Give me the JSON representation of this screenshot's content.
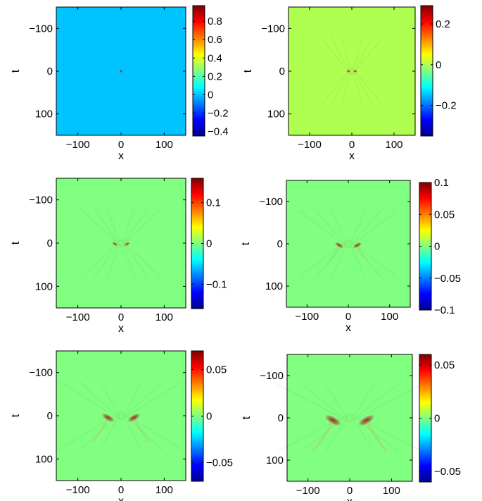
{
  "chart_data": [
    {
      "type": "heatmap",
      "panel": "top-left",
      "xlabel": "x",
      "ylabel": "t",
      "xlim": [
        -150,
        150
      ],
      "ylim": [
        -150,
        150
      ],
      "y_reversed": true,
      "x_ticks": [
        "−100",
        "0",
        "100"
      ],
      "y_ticks": [
        "−100",
        "0",
        "100"
      ],
      "colorbar": {
        "min": -0.45,
        "max": 0.97,
        "ticks": [
          "0.8",
          "0.6",
          "0.4",
          "0.2",
          "0",
          "−0.2",
          "−0.4"
        ],
        "tick_values": [
          0.8,
          0.6,
          0.4,
          0.2,
          0,
          -0.2,
          -0.4
        ]
      },
      "background_value": 0,
      "features": [
        {
          "shape": "point",
          "x": 0,
          "t": 0,
          "value": 0.97
        }
      ]
    },
    {
      "type": "heatmap",
      "panel": "top-right",
      "xlabel": "x",
      "ylabel": "t",
      "xlim": [
        -150,
        150
      ],
      "ylim": [
        -150,
        150
      ],
      "y_reversed": true,
      "x_ticks": [
        "−100",
        "0",
        "100"
      ],
      "y_ticks": [
        "−100",
        "0",
        "100"
      ],
      "colorbar": {
        "min": -0.35,
        "max": 0.29,
        "ticks": [
          "0.2",
          "0",
          "−0.2"
        ],
        "tick_values": [
          0.2,
          0,
          -0.2
        ]
      },
      "background_value": 0,
      "features": [
        {
          "shape": "pair",
          "x": 0,
          "t": 0,
          "separation": 8,
          "value": 0.29
        }
      ]
    },
    {
      "type": "heatmap",
      "panel": "middle-left",
      "xlabel": "x",
      "ylabel": "t",
      "xlim": [
        -150,
        150
      ],
      "ylim": [
        -150,
        150
      ],
      "y_reversed": true,
      "x_ticks": [
        "−100",
        "0",
        "100"
      ],
      "y_ticks": [
        "−100",
        "0",
        "100"
      ],
      "colorbar": {
        "min": -0.16,
        "max": 0.16,
        "ticks": [
          "0.1",
          "0",
          "−0.1"
        ],
        "tick_values": [
          0.1,
          0,
          -0.1
        ]
      },
      "background_value": 0,
      "features": [
        {
          "shape": "arc",
          "x": 0,
          "t": 0,
          "separation": 14,
          "value": 0.16
        }
      ]
    },
    {
      "type": "heatmap",
      "panel": "middle-right",
      "xlabel": "x",
      "ylabel": "t",
      "xlim": [
        -150,
        150
      ],
      "ylim": [
        -150,
        150
      ],
      "y_reversed": true,
      "x_ticks": [
        "−100",
        "0",
        "100"
      ],
      "y_ticks": [
        "−100",
        "0",
        "100"
      ],
      "colorbar": {
        "min": -0.1,
        "max": 0.1,
        "ticks": [
          "0.1",
          "0.05",
          "0",
          "−0.05",
          "−0.1"
        ],
        "tick_values": [
          0.1,
          0.05,
          0,
          -0.05,
          -0.1
        ]
      },
      "background_value": 0,
      "features": [
        {
          "shape": "arc",
          "x": 0,
          "t": 0,
          "separation": 22,
          "value": 0.1
        }
      ]
    },
    {
      "type": "heatmap",
      "panel": "bottom-left",
      "xlabel": "x",
      "ylabel": "t",
      "xlim": [
        -150,
        150
      ],
      "ylim": [
        -150,
        150
      ],
      "y_reversed": true,
      "x_ticks": [
        "−100",
        "0",
        "100"
      ],
      "y_ticks": [
        "−100",
        "0",
        "100"
      ],
      "colorbar": {
        "min": -0.07,
        "max": 0.07,
        "ticks": [
          "0.05",
          "0",
          "−0.05"
        ],
        "tick_values": [
          0.05,
          0,
          -0.05
        ]
      },
      "background_value": 0,
      "features": [
        {
          "shape": "arc",
          "x": 0,
          "t": 0,
          "separation": 30,
          "value": 0.07
        }
      ]
    },
    {
      "type": "heatmap",
      "panel": "bottom-right",
      "xlabel": "x",
      "ylabel": "t",
      "xlim": [
        -150,
        150
      ],
      "ylim": [
        -150,
        150
      ],
      "y_reversed": true,
      "x_ticks": [
        "−100",
        "0",
        "100"
      ],
      "y_ticks": [
        "−100",
        "0",
        "100"
      ],
      "colorbar": {
        "min": -0.06,
        "max": 0.06,
        "ticks": [
          "0.05",
          "0",
          "−0.05"
        ],
        "tick_values": [
          0.05,
          0,
          -0.05
        ]
      },
      "background_value": 0,
      "features": [
        {
          "shape": "arc",
          "x": 0,
          "t": 0,
          "separation": 40,
          "value": 0.06
        }
      ]
    }
  ]
}
